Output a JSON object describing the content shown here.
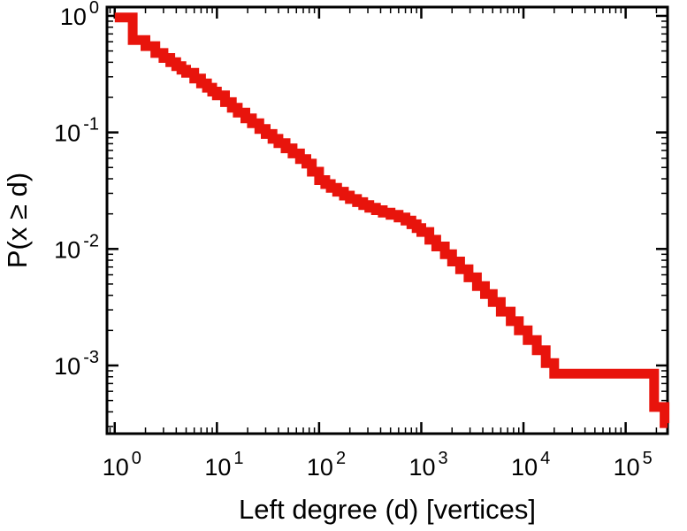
{
  "figure": {
    "background": "#ffffff"
  },
  "chart_data": {
    "type": "line",
    "subtype": "ccdf-step-log-log",
    "title": "",
    "xlabel": "Left degree (d) [vertices]",
    "ylabel": "P(x ≥ d)",
    "scale": {
      "x": "log",
      "y": "log"
    },
    "xlim": [
      0.84,
      257000
    ],
    "ylim": [
      0.00026,
      1.19
    ],
    "grid": false,
    "legend": null,
    "line_color": "#e8140c",
    "line_width": 11,
    "frame_color": "#000000",
    "tick_base": "10",
    "x_ticks": [
      {
        "value": 1,
        "base": "10",
        "exp": "0"
      },
      {
        "value": 10,
        "base": "10",
        "exp": "1"
      },
      {
        "value": 100,
        "base": "10",
        "exp": "2"
      },
      {
        "value": 1000,
        "base": "10",
        "exp": "3"
      },
      {
        "value": 10000,
        "base": "10",
        "exp": "4"
      },
      {
        "value": 100000,
        "base": "10",
        "exp": "5"
      }
    ],
    "y_ticks": [
      {
        "value": 1,
        "base": "10",
        "exp": "0"
      },
      {
        "value": 0.1,
        "base": "10",
        "exp": "-1"
      },
      {
        "value": 0.01,
        "base": "10",
        "exp": "-2"
      },
      {
        "value": 0.001,
        "base": "10",
        "exp": "-3"
      }
    ],
    "points": [
      [
        1,
        0.97
      ],
      [
        1.5,
        0.62
      ],
      [
        2,
        0.55
      ],
      [
        2.5,
        0.48
      ],
      [
        3,
        0.435
      ],
      [
        3.5,
        0.4
      ],
      [
        4,
        0.37
      ],
      [
        4.5,
        0.345
      ],
      [
        5,
        0.325
      ],
      [
        6,
        0.29
      ],
      [
        7,
        0.263
      ],
      [
        8,
        0.242
      ],
      [
        9,
        0.224
      ],
      [
        10,
        0.208
      ],
      [
        12,
        0.182
      ],
      [
        14,
        0.163
      ],
      [
        16,
        0.148
      ],
      [
        19,
        0.132
      ],
      [
        22,
        0.12
      ],
      [
        26,
        0.107
      ],
      [
        30,
        0.097
      ],
      [
        35,
        0.088
      ],
      [
        40,
        0.081
      ],
      [
        47,
        0.073
      ],
      [
        55,
        0.066
      ],
      [
        65,
        0.059
      ],
      [
        75,
        0.054
      ],
      [
        85,
        0.046
      ],
      [
        100,
        0.039
      ],
      [
        115,
        0.036
      ],
      [
        130,
        0.0335
      ],
      [
        150,
        0.031
      ],
      [
        175,
        0.0287
      ],
      [
        200,
        0.0268
      ],
      [
        235,
        0.0252
      ],
      [
        270,
        0.0238
      ],
      [
        310,
        0.0226
      ],
      [
        360,
        0.0215
      ],
      [
        420,
        0.0205
      ],
      [
        500,
        0.0196
      ],
      [
        600,
        0.0186
      ],
      [
        700,
        0.0175
      ],
      [
        800,
        0.0163
      ],
      [
        900,
        0.0151
      ],
      [
        1000,
        0.014
      ],
      [
        1200,
        0.012
      ],
      [
        1400,
        0.0105
      ],
      [
        1700,
        0.009
      ],
      [
        2000,
        0.0078
      ],
      [
        2400,
        0.0067
      ],
      [
        2900,
        0.0057
      ],
      [
        3500,
        0.0048
      ],
      [
        4200,
        0.0041
      ],
      [
        5000,
        0.0035
      ],
      [
        6000,
        0.0029
      ],
      [
        7500,
        0.0024
      ],
      [
        9000,
        0.002
      ],
      [
        11000,
        0.00165
      ],
      [
        13500,
        0.00135
      ],
      [
        16500,
        0.00105
      ],
      [
        20000,
        0.00085
      ],
      [
        190000,
        0.00044
      ],
      [
        240000,
        0.00032
      ]
    ]
  }
}
